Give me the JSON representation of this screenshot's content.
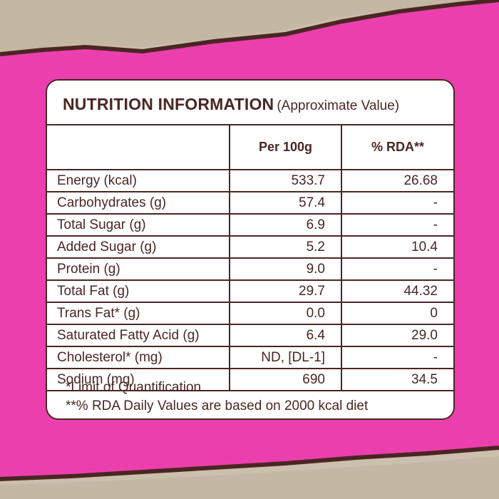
{
  "panel": {
    "title": "NUTRITION INFORMATION",
    "subtitle": "(Approximate Value)"
  },
  "table": {
    "headers": [
      "",
      "Per 100g",
      "% RDA**"
    ],
    "rows": [
      {
        "name": "Energy (kcal)",
        "per100g": "533.7",
        "rda": "26.68"
      },
      {
        "name": "Carbohydrates (g)",
        "per100g": "57.4",
        "rda": "-"
      },
      {
        "name": "Total Sugar (g)",
        "per100g": "6.9",
        "rda": "-"
      },
      {
        "name": "Added Sugar (g)",
        "per100g": "5.2",
        "rda": "10.4"
      },
      {
        "name": "Protein (g)",
        "per100g": "9.0",
        "rda": "-"
      },
      {
        "name": "Total Fat (g)",
        "per100g": "29.7",
        "rda": "44.32"
      },
      {
        "name": "Trans Fat* (g)",
        "per100g": "0.0",
        "rda": "0"
      },
      {
        "name": "Saturated Fatty Acid (g)",
        "per100g": "6.4",
        "rda": "29.0"
      },
      {
        "name": "Cholesterol* (mg)",
        "per100g": "ND, [DL-1]",
        "rda": "-"
      },
      {
        "name": "Sodium (mg)",
        "per100g": "690",
        "rda": "34.5"
      }
    ]
  },
  "notes": {
    "line1": "*Limit of Quantification",
    "line2": "**% RDA Daily Values are based on 2000 kcal diet"
  },
  "colors": {
    "background": "#ec3fae",
    "paper": "#c9bcaa",
    "text": "#4a2622"
  }
}
